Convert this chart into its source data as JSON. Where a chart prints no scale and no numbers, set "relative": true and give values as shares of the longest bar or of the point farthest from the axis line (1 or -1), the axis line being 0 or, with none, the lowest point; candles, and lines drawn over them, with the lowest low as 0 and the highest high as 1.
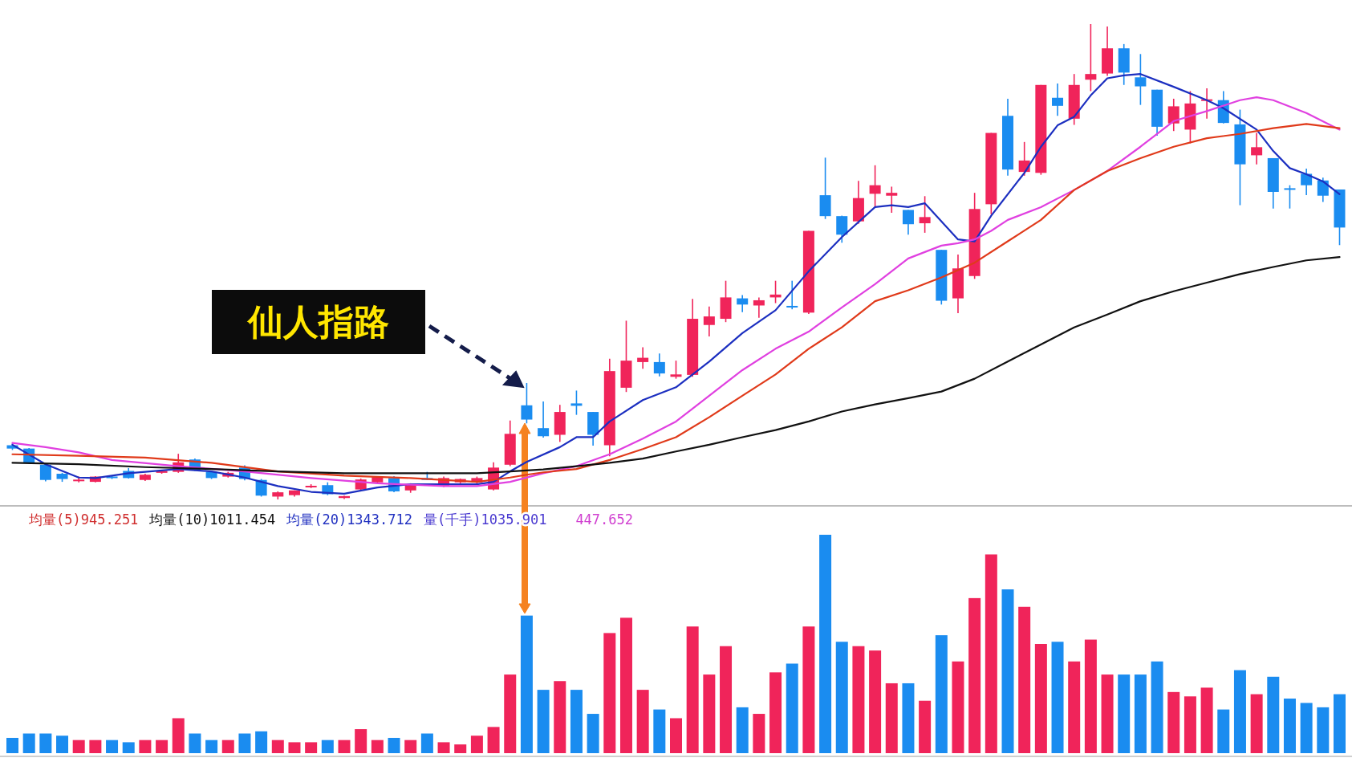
{
  "chart_data": [
    {
      "type": "candlestick",
      "relative": true,
      "categories": [
        null,
        null,
        null,
        null,
        null,
        null,
        null,
        null,
        null,
        null,
        null,
        null,
        null,
        null,
        null,
        null,
        null,
        null,
        null,
        null,
        null,
        null,
        null,
        null,
        null,
        null,
        null,
        null,
        null,
        null,
        null,
        null,
        null,
        null,
        null,
        null,
        null,
        null,
        null,
        null,
        null,
        null,
        null,
        null,
        null,
        null,
        null,
        null,
        null,
        null,
        null,
        null,
        null,
        null,
        null,
        null,
        null,
        null,
        null,
        null,
        null,
        null,
        null,
        null,
        null,
        null,
        null,
        null,
        null,
        null,
        null,
        null,
        null,
        null,
        null,
        null,
        null,
        null,
        null,
        null,
        null
      ],
      "ohlc": [
        [
          0.114,
          0.118,
          0.104,
          0.107
        ],
        [
          0.107,
          0.108,
          0.075,
          0.077
        ],
        [
          0.073,
          0.075,
          0.038,
          0.041
        ],
        [
          0.054,
          0.056,
          0.037,
          0.043
        ],
        [
          0.039,
          0.048,
          0.036,
          0.041
        ],
        [
          0.037,
          0.049,
          0.036,
          0.048
        ],
        [
          0.047,
          0.05,
          0.043,
          0.046
        ],
        [
          0.06,
          0.066,
          0.044,
          0.045
        ],
        [
          0.041,
          0.054,
          0.039,
          0.052
        ],
        [
          0.056,
          0.062,
          0.054,
          0.06
        ],
        [
          0.058,
          0.096,
          0.056,
          0.078
        ],
        [
          0.084,
          0.086,
          0.06,
          0.062
        ],
        [
          0.058,
          0.06,
          0.043,
          0.045
        ],
        [
          0.048,
          0.058,
          0.046,
          0.056
        ],
        [
          0.067,
          0.072,
          0.04,
          0.043
        ],
        [
          0.041,
          0.043,
          0.006,
          0.008
        ],
        [
          0.006,
          0.017,
          0.0,
          0.015
        ],
        [
          0.009,
          0.019,
          0.006,
          0.019
        ],
        [
          0.026,
          0.032,
          0.024,
          0.028
        ],
        [
          0.03,
          0.036,
          0.009,
          0.011
        ],
        [
          0.003,
          0.008,
          0.001,
          0.007
        ],
        [
          0.021,
          0.044,
          0.019,
          0.042
        ],
        [
          0.036,
          0.049,
          0.034,
          0.047
        ],
        [
          0.045,
          0.049,
          0.015,
          0.017
        ],
        [
          0.019,
          0.034,
          0.014,
          0.032
        ],
        [
          0.045,
          0.058,
          0.041,
          0.041
        ],
        [
          0.028,
          0.048,
          0.026,
          0.045
        ],
        [
          0.036,
          0.044,
          0.034,
          0.043
        ],
        [
          0.036,
          0.048,
          0.034,
          0.045
        ],
        [
          0.021,
          0.078,
          0.019,
          0.067
        ],
        [
          0.073,
          0.166,
          0.07,
          0.138
        ],
        [
          0.198,
          0.245,
          0.16,
          0.168
        ],
        [
          0.15,
          0.206,
          0.13,
          0.133
        ],
        [
          0.136,
          0.199,
          0.121,
          0.184
        ],
        [
          0.202,
          0.229,
          0.178,
          0.197
        ],
        [
          0.184,
          0.184,
          0.113,
          0.136
        ],
        [
          0.114,
          0.296,
          0.091,
          0.27
        ],
        [
          0.235,
          0.376,
          0.226,
          0.292
        ],
        [
          0.289,
          0.32,
          0.275,
          0.298
        ],
        [
          0.289,
          0.307,
          0.259,
          0.265
        ],
        [
          0.258,
          0.292,
          0.254,
          0.263
        ],
        [
          0.262,
          0.422,
          0.258,
          0.38
        ],
        [
          0.367,
          0.406,
          0.343,
          0.385
        ],
        [
          0.38,
          0.46,
          0.373,
          0.425
        ],
        [
          0.423,
          0.43,
          0.394,
          0.41
        ],
        [
          0.408,
          0.425,
          0.382,
          0.419
        ],
        [
          0.425,
          0.46,
          0.413,
          0.431
        ],
        [
          0.407,
          0.46,
          0.4,
          0.404
        ],
        [
          0.393,
          0.565,
          0.39,
          0.565
        ],
        [
          0.64,
          0.719,
          0.59,
          0.596
        ],
        [
          0.596,
          0.597,
          0.54,
          0.557
        ],
        [
          0.585,
          0.67,
          0.58,
          0.634
        ],
        [
          0.643,
          0.703,
          0.616,
          0.661
        ],
        [
          0.639,
          0.658,
          0.603,
          0.645
        ],
        [
          0.609,
          0.609,
          0.557,
          0.579
        ],
        [
          0.581,
          0.638,
          0.561,
          0.594
        ],
        [
          0.525,
          0.525,
          0.41,
          0.418
        ],
        [
          0.423,
          0.515,
          0.392,
          0.486
        ],
        [
          0.47,
          0.645,
          0.464,
          0.611
        ],
        [
          0.621,
          0.771,
          0.6,
          0.771
        ],
        [
          0.807,
          0.843,
          0.681,
          0.694
        ],
        [
          0.689,
          0.752,
          0.681,
          0.713
        ],
        [
          0.687,
          0.872,
          0.683,
          0.872
        ],
        [
          0.845,
          0.875,
          0.807,
          0.828
        ],
        [
          0.801,
          0.895,
          0.788,
          0.872
        ],
        [
          0.883,
          1.0,
          0.859,
          0.895
        ],
        [
          0.896,
          0.995,
          0.891,
          0.949
        ],
        [
          0.949,
          0.958,
          0.872,
          0.898
        ],
        [
          0.888,
          0.937,
          0.83,
          0.869
        ],
        [
          0.862,
          0.862,
          0.765,
          0.784
        ],
        [
          0.791,
          0.843,
          0.775,
          0.827
        ],
        [
          0.778,
          0.859,
          0.749,
          0.833
        ],
        [
          0.839,
          0.865,
          0.801,
          0.841
        ],
        [
          0.84,
          0.859,
          0.791,
          0.792
        ],
        [
          0.789,
          0.82,
          0.619,
          0.705
        ],
        [
          0.724,
          0.771,
          0.705,
          0.741
        ],
        [
          0.718,
          0.718,
          0.612,
          0.647
        ],
        [
          0.654,
          0.661,
          0.612,
          0.652
        ],
        [
          0.685,
          0.696,
          0.64,
          0.661
        ],
        [
          0.671,
          0.677,
          0.626,
          0.639
        ],
        [
          0.652,
          0.652,
          0.535,
          0.572
        ]
      ],
      "colors": [
        "#1a8cf0",
        "#1a8cf0",
        "#1a8cf0",
        "#1a8cf0",
        "#f0245a",
        "#f0245a",
        "#1a8cf0",
        "#1a8cf0",
        "#f0245a",
        "#f0245a",
        "#f0245a",
        "#1a8cf0",
        "#1a8cf0",
        "#f0245a",
        "#1a8cf0",
        "#1a8cf0",
        "#f0245a",
        "#f0245a",
        "#f0245a",
        "#1a8cf0",
        "#f0245a",
        "#f0245a",
        "#f0245a",
        "#1a8cf0",
        "#f0245a",
        "#1a8cf0",
        "#f0245a",
        "#f0245a",
        "#f0245a",
        "#f0245a",
        "#f0245a",
        "#1a8cf0",
        "#1a8cf0",
        "#f0245a",
        "#1a8cf0",
        "#1a8cf0",
        "#f0245a",
        "#f0245a",
        "#f0245a",
        "#1a8cf0",
        "#f0245a",
        "#f0245a",
        "#f0245a",
        "#f0245a",
        "#1a8cf0",
        "#f0245a",
        "#f0245a",
        "#1a8cf0",
        "#f0245a",
        "#1a8cf0",
        "#1a8cf0",
        "#f0245a",
        "#f0245a",
        "#f0245a",
        "#1a8cf0",
        "#f0245a",
        "#1a8cf0",
        "#f0245a",
        "#f0245a",
        "#f0245a",
        "#1a8cf0",
        "#f0245a",
        "#f0245a",
        "#1a8cf0",
        "#f0245a",
        "#f0245a",
        "#f0245a",
        "#1a8cf0",
        "#1a8cf0",
        "#1a8cf0",
        "#f0245a",
        "#f0245a",
        "#f0245a",
        "#1a8cf0",
        "#1a8cf0",
        "#f0245a",
        "#1a8cf0",
        "#1a8cf0",
        "#1a8cf0",
        "#1a8cf0",
        "#1a8cf0"
      ],
      "series": [
        {
          "type": "line",
          "color": "#1c2fc0",
          "values": [
            0.115,
            null,
            0.074,
            null,
            0.046,
            0.045,
            null,
            0.055,
            null,
            null,
            0.064,
            null,
            0.059,
            null,
            0.046,
            null,
            0.028,
            null,
            0.016,
            null,
            0.012,
            null,
            0.025,
            null,
            0.032,
            null,
            0.032,
            null,
            0.032,
            0.037,
            0.059,
            0.079,
            null,
            0.11,
            0.131,
            0.131,
            0.164,
            null,
            0.209,
            null,
            0.236,
            null,
            0.29,
            null,
            0.35,
            null,
            0.398,
            null,
            0.48,
            null,
            0.552,
            null,
            0.615,
            0.619,
            0.615,
            0.623,
            null,
            0.547,
            0.543,
            0.597,
            null,
            0.687,
            0.742,
            0.787,
            0.805,
            0.85,
            0.886,
            0.892,
            0.895,
            null,
            0.868,
            null,
            0.84,
            0.823,
            null,
            0.778,
            0.733,
            0.697,
            0.684,
            0.669,
            0.642
          ]
        },
        {
          "type": "line",
          "color": "#e040e0",
          "values": [
            0.119,
            null,
            0.11,
            null,
            0.099,
            null,
            0.083,
            null,
            null,
            null,
            0.07,
            null,
            null,
            null,
            0.059,
            null,
            null,
            null,
            0.045,
            null,
            null,
            null,
            0.034,
            null,
            null,
            null,
            0.028,
            null,
            0.028,
            null,
            0.037,
            null,
            0.055,
            null,
            0.07,
            null,
            0.095,
            null,
            0.128,
            null,
            0.164,
            null,
            0.218,
            null,
            0.272,
            null,
            0.317,
            null,
            0.353,
            null,
            0.404,
            null,
            0.453,
            null,
            0.507,
            null,
            0.534,
            0.539,
            0.547,
            0.565,
            0.588,
            null,
            0.615,
            null,
            0.651,
            null,
            0.691,
            null,
            0.742,
            null,
            0.796,
            null,
            0.817,
            null,
            0.84,
            0.846,
            0.84,
            null,
            0.813,
            null,
            0.778
          ]
        },
        {
          "type": "line",
          "color": "#e03a1a",
          "values": [
            0.095,
            null,
            null,
            null,
            0.092,
            null,
            null,
            null,
            0.088,
            null,
            null,
            null,
            0.077,
            null,
            null,
            null,
            0.059,
            null,
            null,
            null,
            0.05,
            null,
            null,
            null,
            0.045,
            null,
            null,
            null,
            0.037,
            null,
            0.046,
            0.052,
            0.057,
            null,
            0.064,
            null,
            0.083,
            null,
            0.106,
            null,
            0.131,
            null,
            0.173,
            null,
            0.218,
            null,
            0.263,
            null,
            0.317,
            null,
            0.362,
            null,
            0.417,
            null,
            0.44,
            null,
            0.467,
            null,
            0.498,
            null,
            0.543,
            null,
            0.588,
            null,
            0.651,
            null,
            0.691,
            null,
            0.718,
            null,
            0.742,
            null,
            0.76,
            null,
            0.769,
            null,
            0.781,
            null,
            0.79,
            null,
            0.781
          ]
        },
        {
          "type": "line",
          "color": "#111111",
          "values": [
            0.077,
            null,
            null,
            null,
            0.074,
            null,
            null,
            null,
            0.068,
            null,
            null,
            null,
            0.064,
            null,
            null,
            null,
            0.059,
            null,
            null,
            null,
            0.055,
            null,
            null,
            null,
            0.055,
            null,
            null,
            null,
            0.055,
            null,
            0.059,
            null,
            0.063,
            null,
            0.07,
            null,
            0.077,
            null,
            0.086,
            null,
            0.101,
            null,
            0.115,
            null,
            0.131,
            null,
            0.146,
            null,
            0.164,
            null,
            0.185,
            null,
            0.2,
            null,
            0.213,
            null,
            0.227,
            null,
            0.254,
            null,
            0.29,
            null,
            0.326,
            null,
            0.362,
            null,
            0.389,
            null,
            0.417,
            null,
            0.438,
            null,
            0.456,
            null,
            0.474,
            null,
            0.489,
            null,
            0.503,
            null,
            0.51
          ]
        }
      ],
      "annotations": [
        "仙人指路"
      ]
    },
    {
      "type": "bar",
      "relative": true,
      "categories": [
        null,
        null,
        null,
        null,
        null,
        null,
        null,
        null,
        null,
        null,
        null,
        null,
        null,
        null,
        null,
        null,
        null,
        null,
        null,
        null,
        null,
        null,
        null,
        null,
        null,
        null,
        null,
        null,
        null,
        null,
        null,
        null,
        null,
        null,
        null,
        null,
        null,
        null,
        null,
        null,
        null,
        null,
        null,
        null,
        null,
        null,
        null,
        null,
        null,
        null,
        null,
        null,
        null,
        null,
        null,
        null,
        null,
        null,
        null,
        null,
        null,
        null,
        null,
        null,
        null,
        null,
        null,
        null,
        null,
        null,
        null,
        null,
        null,
        null,
        null,
        null,
        null,
        null,
        null,
        null,
        null
      ],
      "values": [
        0.07,
        0.09,
        0.09,
        0.08,
        0.06,
        0.06,
        0.06,
        0.05,
        0.06,
        0.06,
        0.16,
        0.09,
        0.06,
        0.06,
        0.09,
        0.1,
        0.06,
        0.05,
        0.05,
        0.06,
        0.06,
        0.11,
        0.06,
        0.07,
        0.06,
        0.09,
        0.05,
        0.04,
        0.08,
        0.12,
        0.36,
        0.63,
        0.29,
        0.33,
        0.29,
        0.18,
        0.55,
        0.62,
        0.29,
        0.2,
        0.16,
        0.58,
        0.36,
        0.49,
        0.21,
        0.18,
        0.37,
        0.41,
        0.58,
        1.0,
        0.51,
        0.49,
        0.47,
        0.32,
        0.32,
        0.24,
        0.54,
        0.42,
        0.71,
        0.91,
        0.75,
        0.67,
        0.5,
        0.51,
        0.42,
        0.52,
        0.36,
        0.36,
        0.36,
        0.42,
        0.28,
        0.26,
        0.3,
        0.2,
        0.38,
        0.27,
        0.35,
        0.25,
        0.23,
        0.21,
        0.27
      ],
      "colors": [
        "#1a8cf0",
        "#1a8cf0",
        "#1a8cf0",
        "#1a8cf0",
        "#f0245a",
        "#f0245a",
        "#1a8cf0",
        "#1a8cf0",
        "#f0245a",
        "#f0245a",
        "#f0245a",
        "#1a8cf0",
        "#1a8cf0",
        "#f0245a",
        "#1a8cf0",
        "#1a8cf0",
        "#f0245a",
        "#f0245a",
        "#f0245a",
        "#1a8cf0",
        "#f0245a",
        "#f0245a",
        "#f0245a",
        "#1a8cf0",
        "#f0245a",
        "#1a8cf0",
        "#f0245a",
        "#f0245a",
        "#f0245a",
        "#f0245a",
        "#f0245a",
        "#1a8cf0",
        "#1a8cf0",
        "#f0245a",
        "#1a8cf0",
        "#1a8cf0",
        "#f0245a",
        "#f0245a",
        "#f0245a",
        "#1a8cf0",
        "#f0245a",
        "#f0245a",
        "#f0245a",
        "#f0245a",
        "#1a8cf0",
        "#f0245a",
        "#f0245a",
        "#1a8cf0",
        "#f0245a",
        "#1a8cf0",
        "#1a8cf0",
        "#f0245a",
        "#f0245a",
        "#f0245a",
        "#1a8cf0",
        "#f0245a",
        "#1a8cf0",
        "#f0245a",
        "#f0245a",
        "#f0245a",
        "#1a8cf0",
        "#f0245a",
        "#f0245a",
        "#1a8cf0",
        "#f0245a",
        "#f0245a",
        "#f0245a",
        "#1a8cf0",
        "#1a8cf0",
        "#1a8cf0",
        "#f0245a",
        "#f0245a",
        "#f0245a",
        "#1a8cf0",
        "#1a8cf0",
        "#f0245a",
        "#1a8cf0",
        "#1a8cf0",
        "#1a8cf0",
        "#1a8cf0",
        "#1a8cf0"
      ],
      "annotations": [
        "均量(5)945.251",
        "均量(10)1011.454",
        "均量(20)1343.712",
        "量(千手)1035.901",
        "447.652"
      ]
    }
  ]
}
